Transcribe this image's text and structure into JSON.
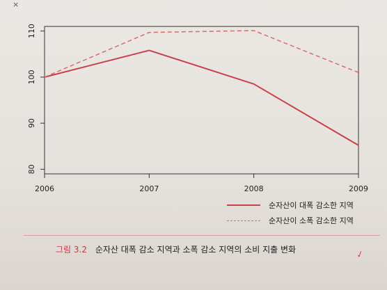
{
  "page": {
    "top_mark": "×",
    "caption_figure": "그림 3.2",
    "caption_text": "순자산 대폭 감소 지역과 소폭 감소 지역의 소비 지출 변화",
    "scribble": "✓"
  },
  "colors": {
    "solid": "#c9404b",
    "dashed": "#d86a72",
    "axis": "#333333"
  },
  "chart_data": {
    "type": "line",
    "title": "",
    "xlabel": "",
    "ylabel": "",
    "x": [
      "2006",
      "2007",
      "2008",
      "2009"
    ],
    "xlim": [
      2006,
      2009
    ],
    "ylim": [
      79,
      111
    ],
    "yticks": [
      "80",
      "90",
      "100",
      "110"
    ],
    "grid": false,
    "legend_position": "bottom-right",
    "series": [
      {
        "name": "순자산이 대폭 감소한 지역",
        "style": "solid",
        "values": [
          100,
          105.8,
          98.5,
          85.2
        ]
      },
      {
        "name": "순자산이 소폭 감소한 지역",
        "style": "dashed",
        "values": [
          100,
          109.7,
          110.1,
          101.0
        ]
      }
    ]
  }
}
